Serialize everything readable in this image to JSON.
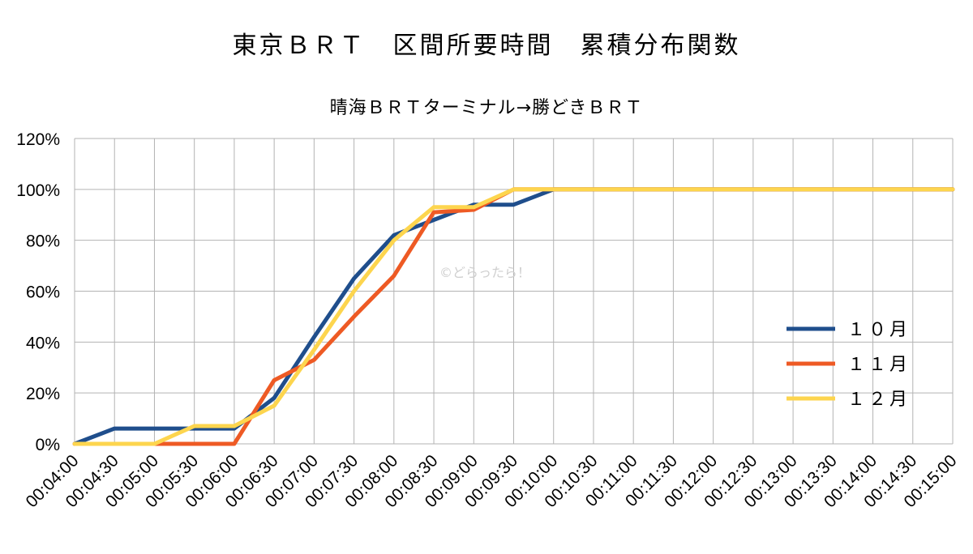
{
  "chart_data": {
    "type": "line",
    "title": "東京ＢＲＴ　区間所要時間　累積分布関数",
    "subtitle": "晴海ＢＲＴターミナル→勝どきＢＲＴ",
    "x": [
      "00:04:00",
      "00:04:30",
      "00:05:00",
      "00:05:30",
      "00:06:00",
      "00:06:30",
      "00:07:00",
      "00:07:30",
      "00:08:00",
      "00:08:30",
      "00:09:00",
      "00:09:30",
      "00:10:00",
      "00:10:30",
      "00:11:00",
      "00:11:30",
      "00:12:00",
      "00:12:30",
      "00:13:00",
      "00:13:30",
      "00:14:00",
      "00:14:30",
      "00:15:00"
    ],
    "y_ticks": [
      "0%",
      "20%",
      "40%",
      "60%",
      "80%",
      "100%",
      "120%"
    ],
    "ylim": [
      0,
      120
    ],
    "grid": true,
    "legend_position": "right",
    "series": [
      {
        "name": "１０月",
        "color": "#1f4e8c",
        "values": [
          0,
          6,
          6,
          6,
          6,
          18,
          42,
          65,
          82,
          88,
          94,
          94,
          100,
          100,
          100,
          100,
          100,
          100,
          100,
          100,
          100,
          100,
          100
        ]
      },
      {
        "name": "１１月",
        "color": "#ee5a24",
        "values": [
          0,
          0,
          0,
          0,
          0,
          25,
          33,
          50,
          66,
          91,
          92,
          100,
          100,
          100,
          100,
          100,
          100,
          100,
          100,
          100,
          100,
          100,
          100
        ]
      },
      {
        "name": "１２月",
        "color": "#fdd54e",
        "values": [
          0,
          0,
          0,
          7,
          7,
          15,
          37,
          60,
          80,
          93,
          93,
          100,
          100,
          100,
          100,
          100,
          100,
          100,
          100,
          100,
          100,
          100,
          100
        ]
      }
    ],
    "watermark": "©どらったら！"
  }
}
